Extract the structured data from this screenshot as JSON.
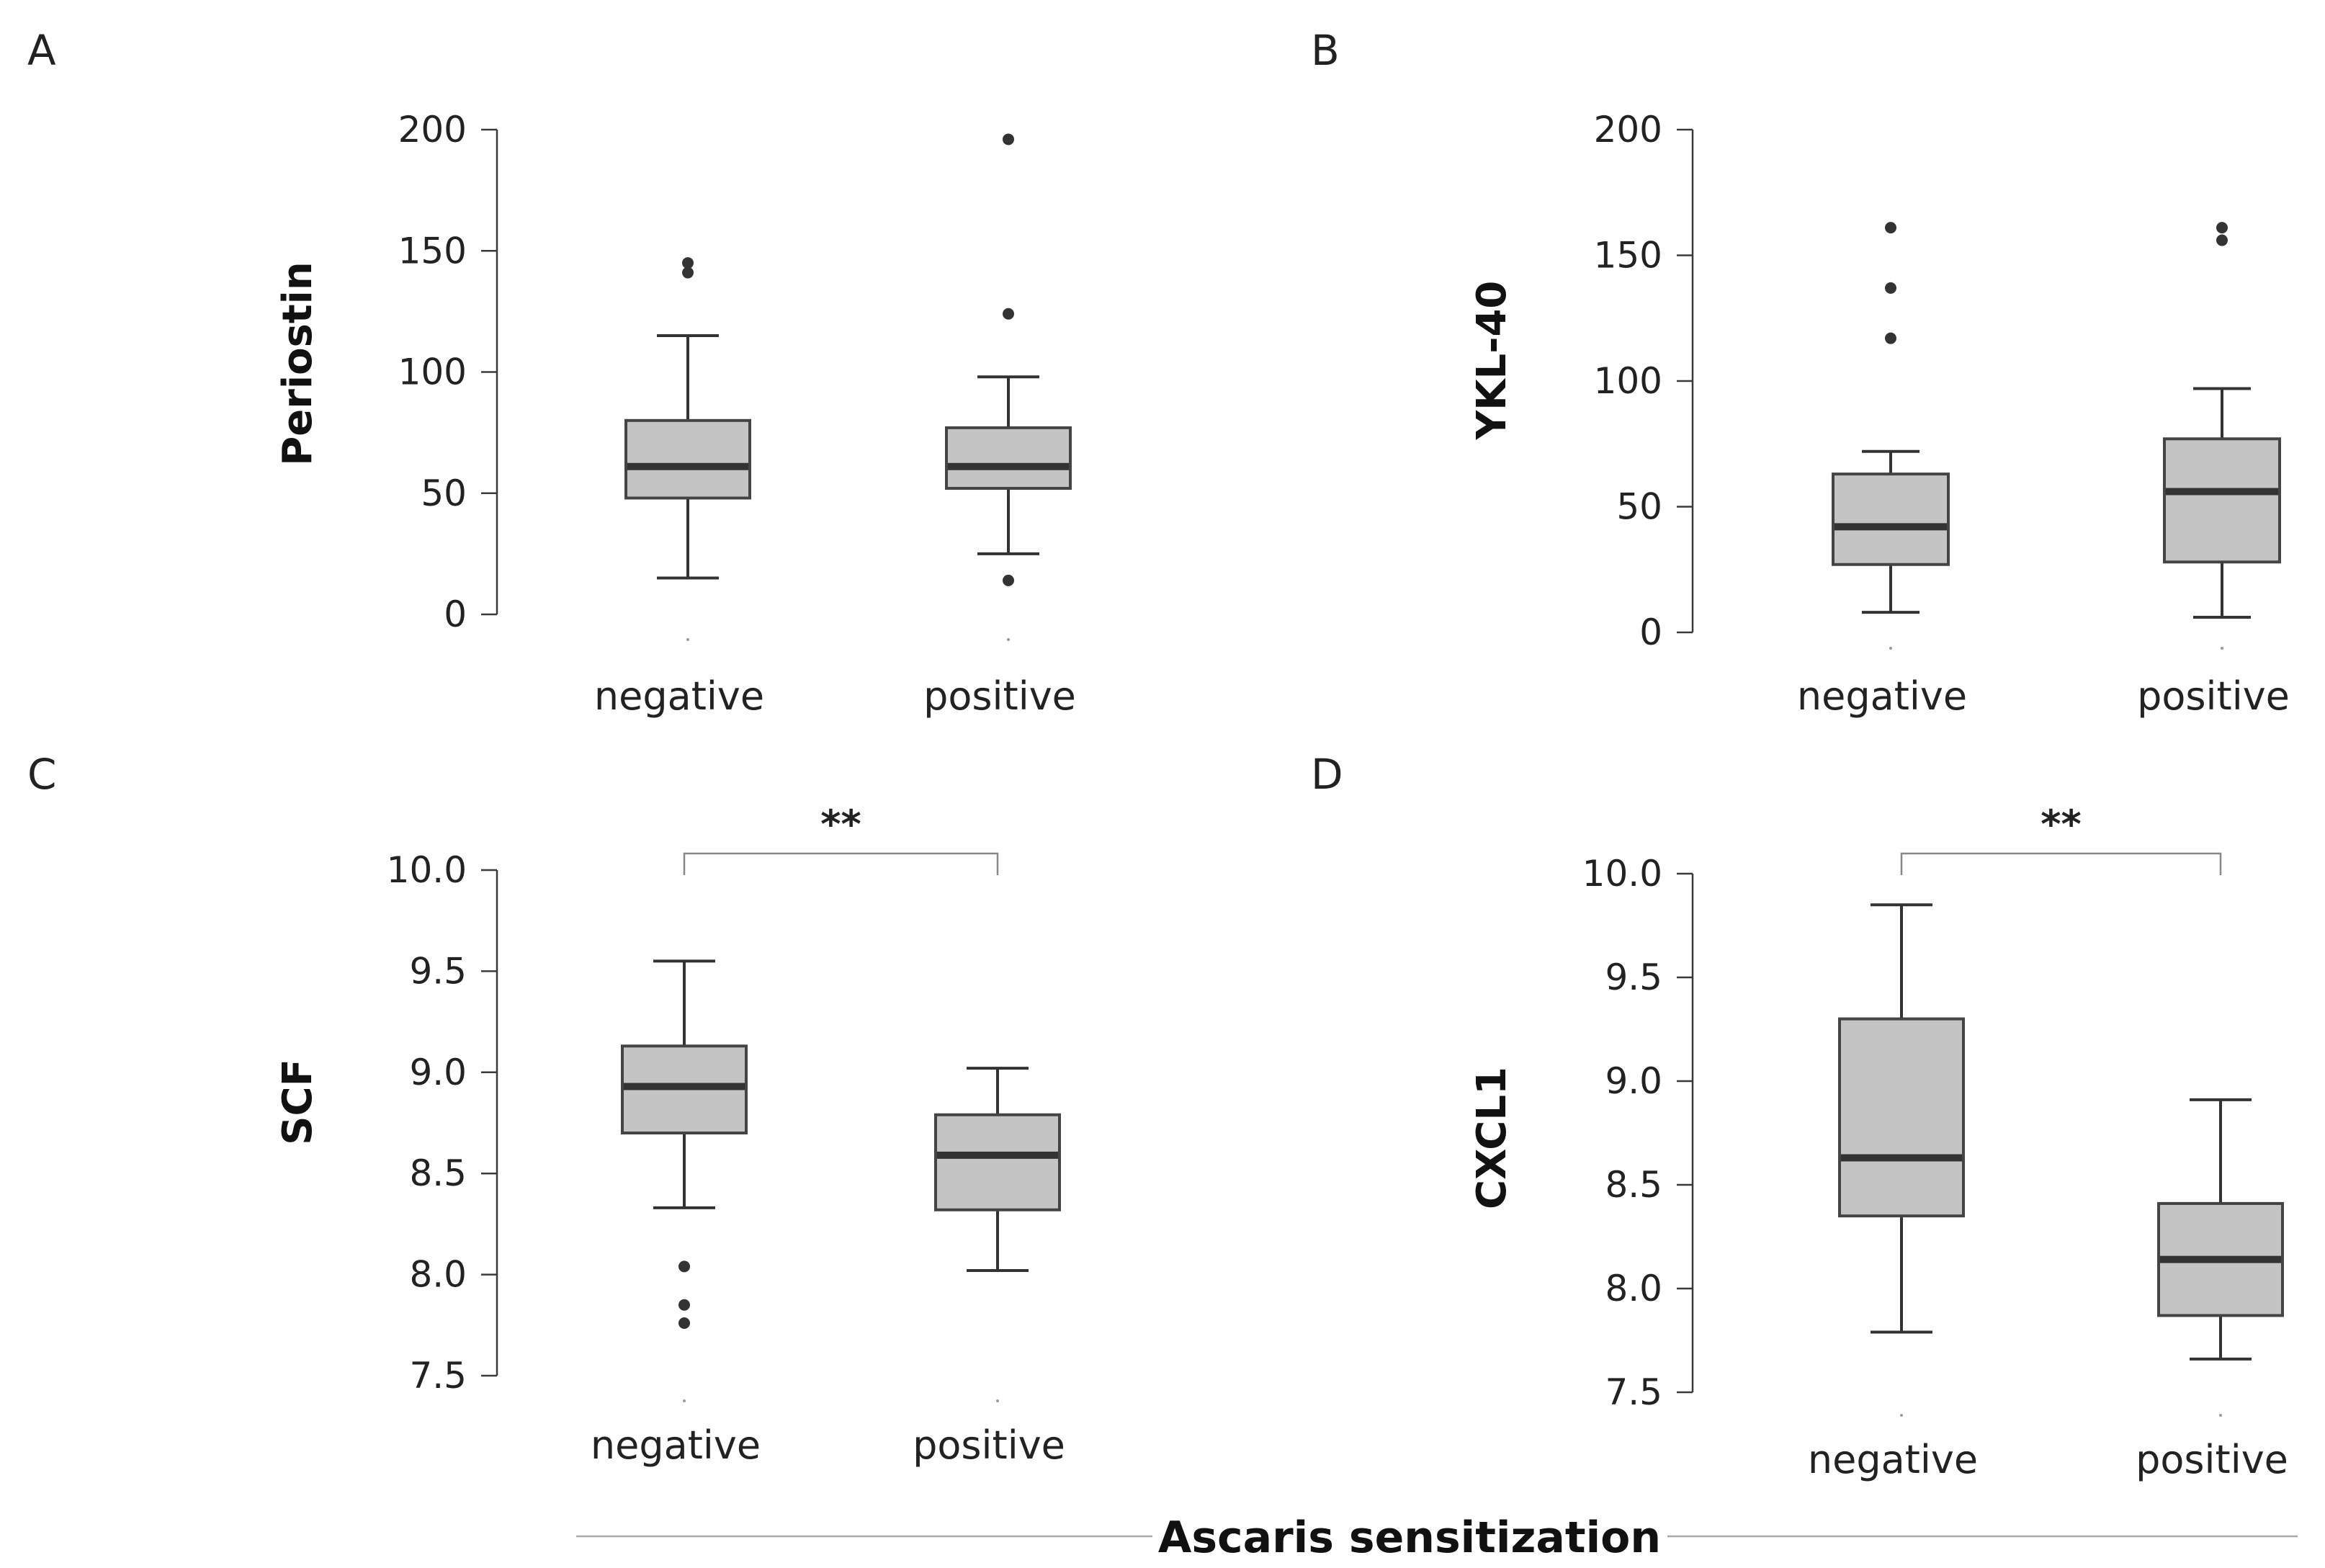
{
  "figure_title": "Ascaris sensitization",
  "chart_data": [
    {
      "panel": "A",
      "type": "box",
      "ylabel": "Periostin",
      "ylim": [
        0,
        200
      ],
      "yticks": [
        "0",
        "50",
        "100",
        "150",
        "200"
      ],
      "ytick_values": [
        0,
        50,
        100,
        150,
        200
      ],
      "categories": [
        "negative",
        "positive"
      ],
      "boxes": [
        {
          "min": 15,
          "q1": 48,
          "median": 61,
          "q3": 80,
          "max": 115,
          "outliers": [
            141,
            145
          ]
        },
        {
          "min": 25,
          "q1": 52,
          "median": 61,
          "q3": 77,
          "max": 98,
          "outliers": [
            14,
            124,
            196
          ]
        }
      ],
      "significance": ""
    },
    {
      "panel": "B",
      "type": "box",
      "ylabel": "YKL-40",
      "ylim": [
        0,
        200
      ],
      "yticks": [
        "0",
        "50",
        "100",
        "150",
        "200"
      ],
      "ytick_values": [
        0,
        50,
        100,
        150,
        200
      ],
      "categories": [
        "negative",
        "positive"
      ],
      "boxes": [
        {
          "min": 8,
          "q1": 27,
          "median": 42,
          "q3": 63,
          "max": 72,
          "outliers": [
            117,
            137,
            161
          ]
        },
        {
          "min": 6,
          "q1": 28,
          "median": 56,
          "q3": 77,
          "max": 97,
          "outliers": [
            156,
            161
          ]
        }
      ],
      "significance": ""
    },
    {
      "panel": "C",
      "type": "box",
      "ylabel": "SCF",
      "ylim": [
        7.5,
        10.0
      ],
      "yticks": [
        "7.5",
        "8.0",
        "8.5",
        "9.0",
        "9.5",
        "10.0"
      ],
      "ytick_values": [
        7.5,
        8.0,
        8.5,
        9.0,
        9.5,
        10.0
      ],
      "categories": [
        "negative",
        "positive"
      ],
      "boxes": [
        {
          "min": 8.33,
          "q1": 8.7,
          "median": 8.93,
          "q3": 9.13,
          "max": 9.55,
          "outliers": [
            7.76,
            7.85,
            8.04
          ]
        },
        {
          "min": 8.02,
          "q1": 8.32,
          "median": 8.59,
          "q3": 8.79,
          "max": 9.02,
          "outliers": []
        }
      ],
      "significance": "**"
    },
    {
      "panel": "D",
      "type": "box",
      "ylabel": "CXCL1",
      "ylim": [
        7.5,
        10.0
      ],
      "yticks": [
        "7.5",
        "8.0",
        "8.5",
        "9.0",
        "9.5",
        "10.0"
      ],
      "ytick_values": [
        7.5,
        8.0,
        8.5,
        9.0,
        9.5,
        10.0
      ],
      "categories": [
        "negative",
        "positive"
      ],
      "boxes": [
        {
          "min": 7.79,
          "q1": 8.35,
          "median": 8.63,
          "q3": 9.3,
          "max": 9.85,
          "outliers": []
        },
        {
          "min": 7.66,
          "q1": 7.87,
          "median": 8.14,
          "q3": 8.41,
          "max": 8.91,
          "outliers": []
        }
      ],
      "significance": "**"
    }
  ]
}
